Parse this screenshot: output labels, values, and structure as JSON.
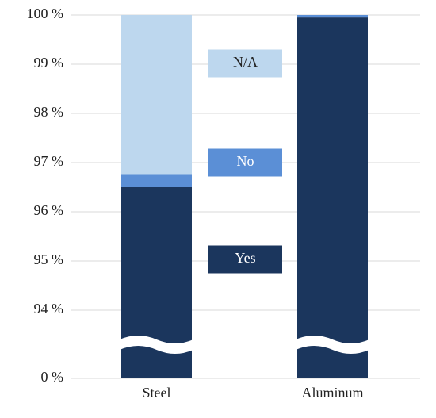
{
  "chart_data": {
    "type": "stacked_bar",
    "categories": [
      "Steel",
      "Aluminum"
    ],
    "series": [
      {
        "name": "Yes",
        "color": "#1b365d",
        "values": [
          96.5,
          99.95
        ]
      },
      {
        "name": "No",
        "color": "#5b8fd6",
        "values": [
          0.25,
          0.05
        ]
      },
      {
        "name": "N/A",
        "color": "#bdd7ee",
        "values": [
          3.25,
          0
        ]
      }
    ],
    "ylim": [
      0,
      100
    ],
    "yticks": [
      {
        "value": 0,
        "label": "0 %"
      },
      {
        "value": 94,
        "label": "94 %"
      },
      {
        "value": 95,
        "label": "95 %"
      },
      {
        "value": 96,
        "label": "96 %"
      },
      {
        "value": 97,
        "label": "97 %"
      },
      {
        "value": 98,
        "label": "98 %"
      },
      {
        "value": 99,
        "label": "99 %"
      },
      {
        "value": 100,
        "label": "100 %"
      }
    ],
    "axis_break": true,
    "grid": true
  }
}
